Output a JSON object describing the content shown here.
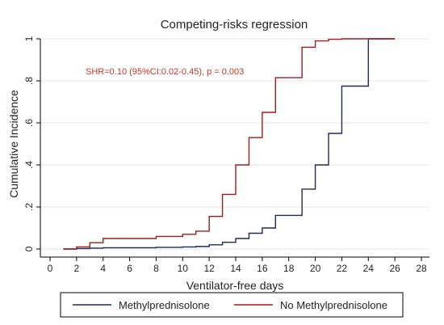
{
  "chart_data": {
    "type": "line",
    "step": true,
    "title": "Competing-risks regression",
    "xlabel": "Ventilator-free days",
    "ylabel": "Cumulative Incidence",
    "xlim": [
      0,
      28
    ],
    "ylim": [
      0,
      1
    ],
    "xticks": [
      0,
      2,
      4,
      6,
      8,
      10,
      12,
      14,
      16,
      18,
      20,
      22,
      24,
      26,
      28
    ],
    "yticks": [
      0,
      0.2,
      0.4,
      0.6,
      0.8,
      1
    ],
    "ytick_labels": [
      "0",
      ".2",
      ".4",
      ".6",
      ".8",
      "1"
    ],
    "grid": "horizontal",
    "legend_position": "bottom",
    "annotation": "SHR=0.10 (95%CI:0.02-0.45), p = 0.003",
    "series": [
      {
        "name": "Methylprednisolone",
        "color": "#1f2a56",
        "x": [
          1,
          2,
          3,
          4,
          8,
          10,
          11,
          12,
          13,
          14,
          15,
          16,
          17,
          19,
          20,
          21,
          22,
          24,
          26
        ],
        "y": [
          0.0,
          0.002,
          0.004,
          0.006,
          0.008,
          0.01,
          0.012,
          0.02,
          0.032,
          0.05,
          0.075,
          0.1,
          0.16,
          0.285,
          0.4,
          0.55,
          0.775,
          1.0,
          1.0
        ]
      },
      {
        "name": "No Methylprednisolone",
        "color": "#a01c1c",
        "x": [
          1,
          2,
          3,
          4,
          8,
          10,
          11,
          12,
          13,
          14,
          15,
          16,
          17,
          19,
          20,
          21,
          22,
          24,
          26
        ],
        "y": [
          0.0,
          0.01,
          0.03,
          0.05,
          0.06,
          0.07,
          0.085,
          0.155,
          0.26,
          0.4,
          0.53,
          0.65,
          0.815,
          0.96,
          0.99,
          0.998,
          1.0,
          1.0,
          1.0
        ]
      }
    ]
  }
}
